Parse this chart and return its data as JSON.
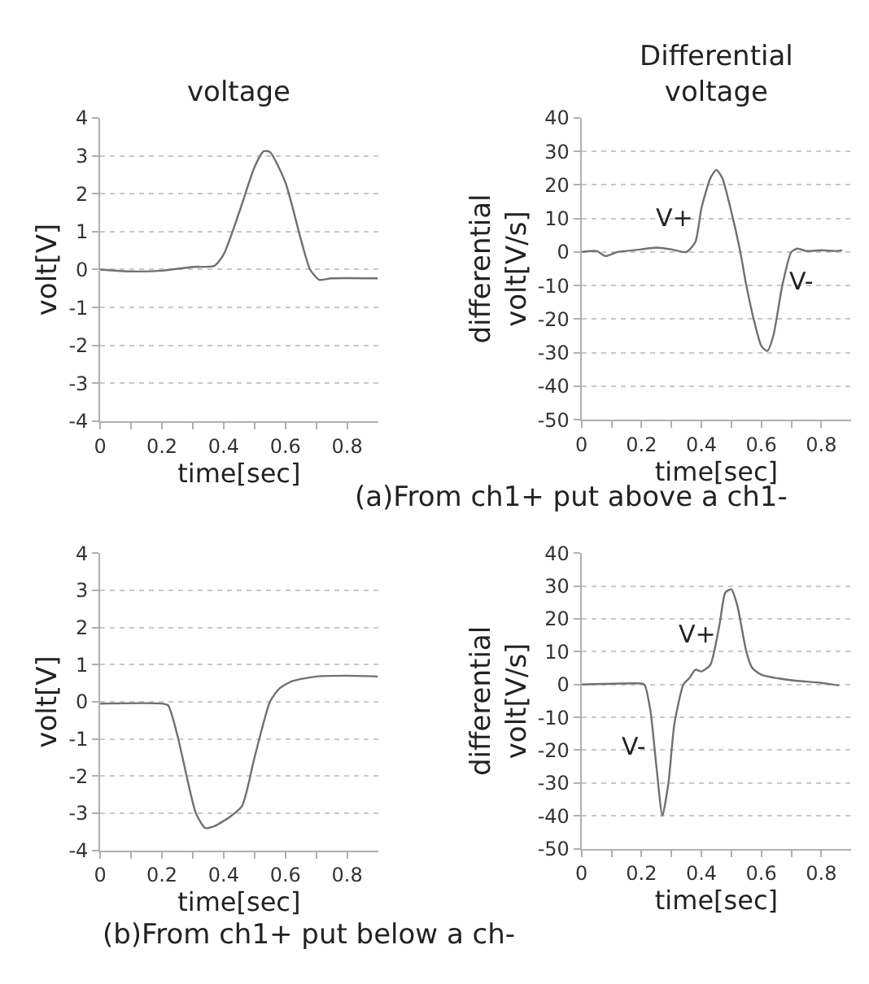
{
  "chart_data": [
    {
      "type": "line",
      "title": "voltage",
      "xlabel": "time[sec]",
      "ylabel": "volt[V]",
      "xlim": [
        0,
        0.9
      ],
      "ylim": [
        -4,
        4
      ],
      "xticks": [
        0,
        {
          "value": 0.1,
          "label": null
        },
        0.2,
        {
          "value": 0.3,
          "label": null
        },
        0.4,
        {
          "value": 0.5,
          "label": null
        },
        0.6,
        {
          "value": 0.7,
          "label": null
        },
        0.8
      ],
      "yticks": [
        -4,
        -3,
        -2,
        -1,
        0,
        1,
        2,
        3,
        4
      ],
      "grid": "y",
      "marker": "none",
      "line_style": "solid",
      "series": [
        {
          "color": "#707070",
          "x": [
            0,
            0.1,
            0.2,
            0.3,
            0.37,
            0.4,
            0.45,
            0.5,
            0.53,
            0.55,
            0.6,
            0.65,
            0.68,
            0.71,
            0.75,
            0.9
          ],
          "values": [
            0,
            -0.05,
            -0.03,
            0.07,
            0.1,
            0.4,
            1.5,
            2.7,
            3.12,
            3.1,
            2.3,
            0.8,
            0.0,
            -0.27,
            -0.23,
            -0.23
          ]
        }
      ],
      "annotations": [
        "(a)From ch1+ put above a ch1-"
      ]
    },
    {
      "type": "line",
      "title": "Differential\nvoltage",
      "xlabel": "time[sec]",
      "ylabel": "differential\nvolt[V/s]",
      "xlim": [
        0,
        0.9
      ],
      "ylim": [
        -50,
        40
      ],
      "xticks": [
        0,
        {
          "value": 0.1,
          "label": null
        },
        0.2,
        {
          "value": 0.3,
          "label": null
        },
        0.4,
        {
          "value": 0.5,
          "label": null
        },
        0.6,
        {
          "value": 0.7,
          "label": null
        },
        0.8
      ],
      "yticks": [
        -50,
        -40,
        -30,
        -20,
        -10,
        0,
        10,
        20,
        30,
        40
      ],
      "grid": "y",
      "marker": "none",
      "line_style": "solid",
      "series": [
        {
          "color": "#707070",
          "x": [
            0,
            0.05,
            0.08,
            0.12,
            0.15,
            0.2,
            0.25,
            0.3,
            0.35,
            0.38,
            0.4,
            0.43,
            0.45,
            0.47,
            0.5,
            0.53,
            0.55,
            0.58,
            0.6,
            0.62,
            0.64,
            0.67,
            0.7,
            0.72,
            0.75,
            0.8,
            0.85,
            0.87
          ],
          "values": [
            0,
            0.3,
            -1.2,
            0,
            0.3,
            0.8,
            1.3,
            0.8,
            0,
            3,
            13,
            22,
            24.5,
            22,
            12,
            0,
            -10,
            -22,
            -28,
            -29.5,
            -25,
            -10,
            0,
            1,
            0.3,
            0.5,
            0.3,
            0.5
          ]
        }
      ],
      "annotations": [
        "V+",
        "V-"
      ]
    },
    {
      "type": "line",
      "xlabel": "time[sec]",
      "ylabel": "volt[V]",
      "xlim": [
        0,
        0.9
      ],
      "ylim": [
        -4,
        4
      ],
      "xticks": [
        0,
        {
          "value": 0.1,
          "label": null
        },
        0.2,
        {
          "value": 0.3,
          "label": null
        },
        0.4,
        {
          "value": 0.5,
          "label": null
        },
        0.6,
        {
          "value": 0.7,
          "label": null
        },
        0.8
      ],
      "yticks": [
        -4,
        -3,
        -2,
        -1,
        0,
        1,
        2,
        3,
        4
      ],
      "grid": "y",
      "marker": "none",
      "line_style": "solid",
      "series": [
        {
          "color": "#707070",
          "x": [
            0,
            0.2,
            0.22,
            0.25,
            0.28,
            0.31,
            0.34,
            0.37,
            0.42,
            0.46,
            0.5,
            0.55,
            0.58,
            0.62,
            0.7,
            0.8,
            0.9
          ],
          "values": [
            -0.05,
            -0.05,
            -0.1,
            -0.9,
            -2.0,
            -3.0,
            -3.4,
            -3.35,
            -3.1,
            -2.8,
            -1.5,
            0,
            0.35,
            0.55,
            0.68,
            0.7,
            0.68
          ]
        }
      ],
      "annotations": [
        "(b)From ch1+ put below a ch-"
      ]
    },
    {
      "type": "line",
      "xlabel": "time[sec]",
      "ylabel": "differential\nvolt[V/s]",
      "xlim": [
        0,
        0.9
      ],
      "ylim": [
        -50,
        40
      ],
      "xticks": [
        0,
        {
          "value": 0.1,
          "label": null
        },
        0.2,
        {
          "value": 0.3,
          "label": null
        },
        0.4,
        {
          "value": 0.5,
          "label": null
        },
        0.6,
        {
          "value": 0.7,
          "label": null
        },
        0.8
      ],
      "yticks": [
        -50,
        -40,
        -30,
        -20,
        -10,
        0,
        10,
        20,
        30,
        40
      ],
      "grid": "y",
      "marker": "none",
      "line_style": "solid",
      "series": [
        {
          "color": "#707070",
          "x": [
            0,
            0.2,
            0.21,
            0.23,
            0.25,
            0.27,
            0.29,
            0.31,
            0.34,
            0.36,
            0.38,
            0.4,
            0.43,
            0.46,
            0.48,
            0.5,
            0.52,
            0.55,
            0.57,
            0.6,
            0.7,
            0.8,
            0.86
          ],
          "values": [
            0,
            0.3,
            0,
            -8,
            -25,
            -40,
            -30,
            -12,
            0,
            2,
            4.5,
            4,
            6,
            18,
            28,
            29,
            24,
            10,
            5,
            3,
            1.3,
            0.5,
            -0.3
          ]
        }
      ],
      "annotations": [
        "V+",
        "V-"
      ]
    }
  ]
}
